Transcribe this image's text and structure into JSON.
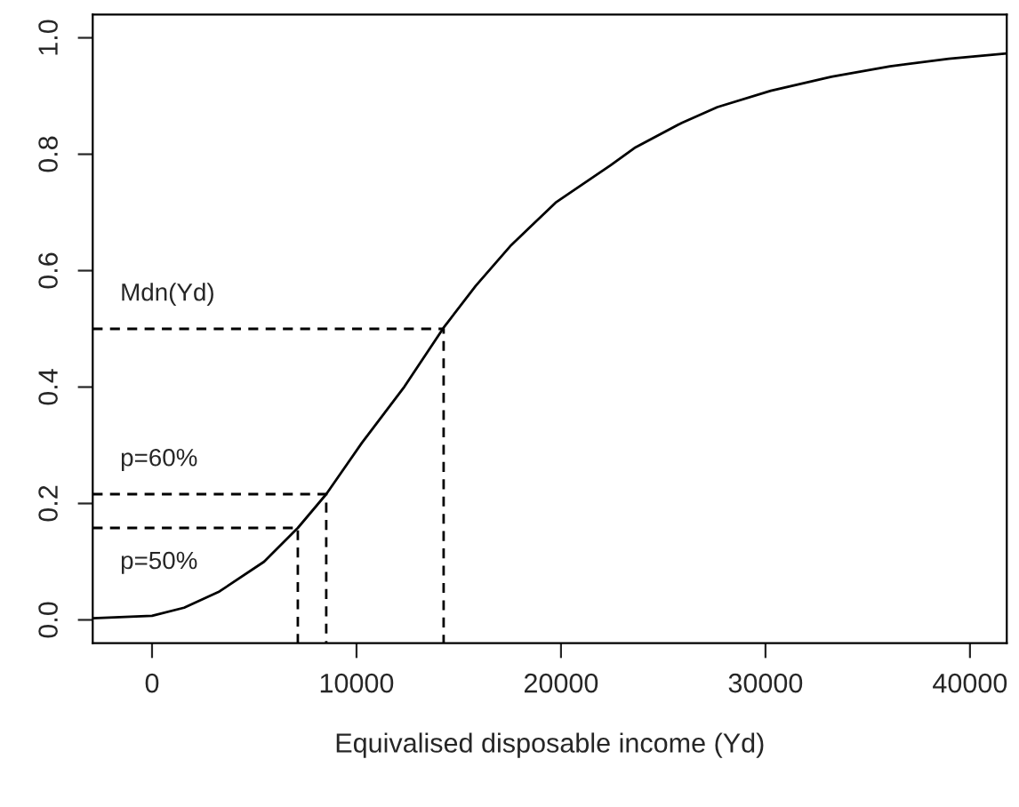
{
  "chart_data": {
    "type": "line",
    "xlabel": "Equivalised disposable income (Yd)",
    "xlim": [
      -2900,
      41800
    ],
    "ylim": [
      -0.04,
      1.04
    ],
    "xticks": [
      0,
      10000,
      20000,
      30000,
      40000
    ],
    "yticks": [
      {
        "value": 0,
        "label": "0.0"
      },
      {
        "value": 0.2,
        "label": "0.2"
      },
      {
        "value": 0.4,
        "label": "0.4"
      },
      {
        "value": 0.6,
        "label": "0.6"
      },
      {
        "value": 0.8,
        "label": "0.8"
      },
      {
        "value": 1,
        "label": "1.0"
      }
    ],
    "grid": false,
    "marker": "none",
    "series": [
      {
        "color": "#000000",
        "line_style": "solid",
        "x": [
          -2900,
          0,
          1570,
          3300,
          5480,
          7130,
          8520,
          10260,
          12350,
          14260,
          15830,
          17570,
          19740,
          22430,
          23650,
          25910,
          27650,
          30260,
          33220,
          36090,
          38960,
          41800
        ],
        "values": [
          0.003,
          0.007,
          0.021,
          0.049,
          0.1,
          0.158,
          0.216,
          0.304,
          0.401,
          0.502,
          0.574,
          0.644,
          0.717,
          0.781,
          0.812,
          0.854,
          0.881,
          0.909,
          0.933,
          0.951,
          0.964,
          0.973
        ]
      },
      {
        "color": "#000000",
        "line_style": "dashed",
        "x": [
          -2900,
          14260,
          14260
        ],
        "values": [
          0.5,
          0.5,
          -0.04
        ]
      },
      {
        "color": "#000000",
        "line_style": "dashed",
        "x": [
          -2900,
          8520,
          8520
        ],
        "values": [
          0.216,
          0.216,
          -0.04
        ]
      },
      {
        "color": "#000000",
        "line_style": "dashed",
        "x": [
          -2900,
          7130,
          7130
        ],
        "values": [
          0.158,
          0.158,
          -0.04
        ]
      }
    ],
    "annotations": [
      "Mdn(Yd)",
      "p=60%",
      "p=50%"
    ]
  }
}
